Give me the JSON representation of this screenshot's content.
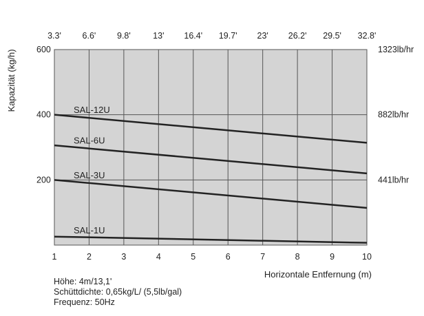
{
  "chart_data": {
    "type": "line",
    "grid": true,
    "background_color": "#d4d4d4",
    "line_color": "#222222",
    "x": [
      1,
      10
    ],
    "xlim": [
      1,
      10
    ],
    "ylim": [
      0,
      600
    ],
    "x_ticks": [
      "1",
      "2",
      "3",
      "4",
      "5",
      "6",
      "7",
      "8",
      "9",
      "10"
    ],
    "x_ticks_top": [
      "3.3'",
      "6.6'",
      "9.8'",
      "13'",
      "16.4'",
      "19.7'",
      "23'",
      "26.2'",
      "29.5'",
      "32.8'"
    ],
    "y_ticks": [
      {
        "value": 200,
        "label": "200"
      },
      {
        "value": 400,
        "label": "400"
      },
      {
        "value": 600,
        "label": "600"
      }
    ],
    "y_ticks_right": [
      {
        "value": 200,
        "label": "441lb/hr"
      },
      {
        "value": 400,
        "label": "882lb/hr"
      },
      {
        "value": 600,
        "label": "1323lb/hr"
      }
    ],
    "xlabel": "Horizontale Entfernung (m)",
    "ylabel": "Kapazität (kg/h)",
    "series": [
      {
        "name": "SAL-12U",
        "values": [
          400,
          314
        ]
      },
      {
        "name": "SAL-6U",
        "values": [
          306,
          220
        ]
      },
      {
        "name": "SAL-3U",
        "values": [
          200,
          114
        ]
      },
      {
        "name": "SAL-1U",
        "values": [
          26,
          7
        ]
      }
    ]
  },
  "notes": [
    "Höhe: 4m/13,1'",
    "Schüttdichte: 0,65kg/L/ (5,5lb/gal)",
    "Frequenz: 50Hz"
  ]
}
